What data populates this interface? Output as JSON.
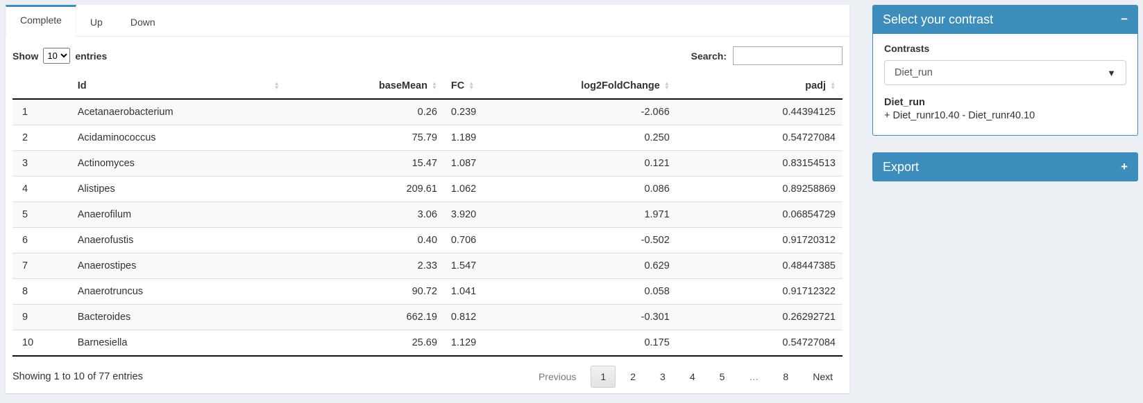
{
  "colors": {
    "accent": "#3c8dbc",
    "page_bg": "#ecf0f5",
    "stripe": "#f9f9f9"
  },
  "icons": {
    "sort_asc": "▲",
    "sort_desc": "▼",
    "caret_down": "▼",
    "collapse_minus": "−",
    "expand_plus": "+"
  },
  "tabs": [
    {
      "label": "Complete",
      "active": true
    },
    {
      "label": "Up",
      "active": false
    },
    {
      "label": "Down",
      "active": false
    }
  ],
  "table_controls": {
    "show_label": "Show",
    "page_length": "10",
    "entries_label": "entries",
    "search_label": "Search:",
    "search_value": ""
  },
  "table": {
    "columns": [
      {
        "label": ""
      },
      {
        "label": "Id"
      },
      {
        "label": "baseMean"
      },
      {
        "label": "FC"
      },
      {
        "label": "log2FoldChange"
      },
      {
        "label": "padj"
      }
    ],
    "rows": [
      [
        "1",
        "Acetanaerobacterium",
        "0.26",
        "0.239",
        "-2.066",
        "0.44394125"
      ],
      [
        "2",
        "Acidaminococcus",
        "75.79",
        "1.189",
        "0.250",
        "0.54727084"
      ],
      [
        "3",
        "Actinomyces",
        "15.47",
        "1.087",
        "0.121",
        "0.83154513"
      ],
      [
        "4",
        "Alistipes",
        "209.61",
        "1.062",
        "0.086",
        "0.89258869"
      ],
      [
        "5",
        "Anaerofilum",
        "3.06",
        "3.920",
        "1.971",
        "0.06854729"
      ],
      [
        "6",
        "Anaerofustis",
        "0.40",
        "0.706",
        "-0.502",
        "0.91720312"
      ],
      [
        "7",
        "Anaerostipes",
        "2.33",
        "1.547",
        "0.629",
        "0.48447385"
      ],
      [
        "8",
        "Anaerotruncus",
        "90.72",
        "1.041",
        "0.058",
        "0.91712322"
      ],
      [
        "9",
        "Bacteroides",
        "662.19",
        "0.812",
        "-0.301",
        "0.26292721"
      ],
      [
        "10",
        "Barnesiella",
        "25.69",
        "1.129",
        "0.175",
        "0.54727084"
      ]
    ]
  },
  "footer": {
    "info": "Showing 1 to 10 of 77 entries",
    "pagination": [
      "Previous",
      "1",
      "2",
      "3",
      "4",
      "5",
      "…",
      "8",
      "Next"
    ],
    "active_page": "1"
  },
  "contrast_panel": {
    "title": "Select your contrast",
    "contrasts_label": "Contrasts",
    "selected_contrast": "Diet_run",
    "contrast_name": "Diet_run",
    "contrast_formula": "+ Diet_runr10.40 - Diet_runr40.10"
  },
  "export_panel": {
    "title": "Export"
  }
}
